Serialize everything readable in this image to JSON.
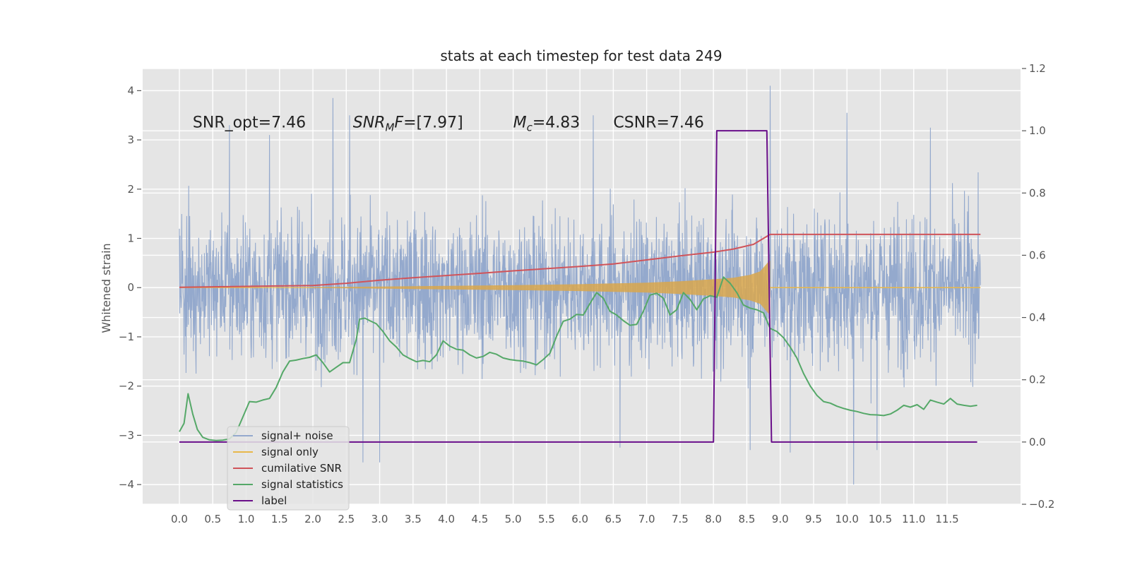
{
  "chart_data": {
    "type": "line",
    "title": "stats at each timestep for test data 249",
    "xlabel": "",
    "ylabel": "Whitened strain",
    "ylabel_right": "",
    "xlim": [
      -0.55,
      12.6
    ],
    "ylim": [
      -4.4,
      4.45
    ],
    "ylim_right": [
      -0.2,
      1.2
    ],
    "x_ticks": [
      "0.0",
      "0.5",
      "1.0",
      "1.5",
      "2.0",
      "2.5",
      "3.0",
      "3.5",
      "4.0",
      "4.5",
      "5.0",
      "5.5",
      "6.0",
      "6.5",
      "7.0",
      "7.5",
      "8.0",
      "8.5",
      "9.0",
      "9.5",
      "10.0",
      "10.5",
      "11.0",
      "11.5"
    ],
    "y_ticks_left": [
      "4",
      "3",
      "2",
      "1",
      "0",
      "−1",
      "−2",
      "−3",
      "−4"
    ],
    "y_ticks_right": [
      "1.2",
      "1.0",
      "0.8",
      "0.6",
      "0.4",
      "0.2",
      "0.0",
      "−0.2"
    ],
    "grid": true,
    "legend_placement": "lower-left",
    "annotations": [
      {
        "x": 0.2,
        "y": 3.25,
        "parts": [
          {
            "text": "SNR_opt=7.46",
            "italic": false,
            "sub": false
          }
        ]
      },
      {
        "x": 2.6,
        "y": 3.25,
        "parts": [
          {
            "text": "SNR",
            "italic": true,
            "sub": false
          },
          {
            "text": "M",
            "italic": true,
            "sub": true
          },
          {
            "text": "F",
            "italic": true,
            "sub": false
          },
          {
            "text": "=[7.97]",
            "italic": false,
            "sub": false
          }
        ]
      },
      {
        "x": 5.0,
        "y": 3.25,
        "parts": [
          {
            "text": "M",
            "italic": true,
            "sub": false
          },
          {
            "text": "c",
            "italic": true,
            "sub": true
          },
          {
            "text": "=4.83",
            "italic": false,
            "sub": false
          }
        ]
      },
      {
        "x": 6.5,
        "y": 3.25,
        "parts": [
          {
            "text": "CSNR=7.46",
            "italic": false,
            "sub": false
          }
        ]
      }
    ],
    "noise": {
      "x_start": 0.0,
      "x_end": 12.0,
      "envelope_x": [
        0,
        1,
        2,
        3,
        4,
        5,
        6,
        7,
        8,
        9,
        10,
        11,
        12
      ],
      "envelope_upper": [
        2.1,
        2.8,
        3.0,
        3.4,
        3.0,
        2.9,
        3.0,
        2.9,
        3.5,
        3.0,
        3.0,
        2.9,
        2.5
      ],
      "envelope_lower": [
        -2.5,
        -2.8,
        -3.2,
        -3.4,
        -3.0,
        -3.0,
        -3.0,
        -3.0,
        -3.2,
        -3.4,
        -3.6,
        -3.2,
        -3.0
      ],
      "spikes": [
        {
          "x": 0.75,
          "y": 3.3
        },
        {
          "x": 1.35,
          "y": 3.1
        },
        {
          "x": 2.3,
          "y": 3.85
        },
        {
          "x": 2.55,
          "y": 3.5
        },
        {
          "x": 6.2,
          "y": 3.5
        },
        {
          "x": 8.85,
          "y": 4.1
        },
        {
          "x": 10.0,
          "y": 3.55
        },
        {
          "x": 11.25,
          "y": 3.25
        },
        {
          "x": 2.75,
          "y": -3.55
        },
        {
          "x": 3.0,
          "y": -3.55
        },
        {
          "x": 6.6,
          "y": -3.25
        },
        {
          "x": 8.55,
          "y": -3.3
        },
        {
          "x": 9.15,
          "y": -3.35
        },
        {
          "x": 10.1,
          "y": -4.0
        },
        {
          "x": 10.45,
          "y": -3.3
        }
      ]
    },
    "signal_envelope": {
      "x": [
        2.0,
        3.0,
        4.0,
        5.0,
        6.0,
        6.5,
        7.0,
        7.5,
        8.0,
        8.3,
        8.55,
        8.7,
        8.82,
        8.85
      ],
      "amplitude": [
        0.01,
        0.02,
        0.035,
        0.05,
        0.07,
        0.085,
        0.1,
        0.13,
        0.17,
        0.2,
        0.26,
        0.33,
        0.52,
        0.55
      ],
      "x_end": 8.85
    },
    "series": [
      {
        "name": "signal+ noise",
        "axis": "left",
        "color": "#94a9cd"
      },
      {
        "name": "signal only",
        "axis": "left",
        "color": "#e8b84a"
      },
      {
        "name": "cumilative SNR",
        "axis": "right",
        "color": "#d0545a",
        "x": [
          0.0,
          1.0,
          2.0,
          2.5,
          3.0,
          3.5,
          4.0,
          4.5,
          5.0,
          5.5,
          6.0,
          6.5,
          7.0,
          7.5,
          8.0,
          8.3,
          8.6,
          8.85,
          12.0
        ],
        "y": [
          0.497,
          0.5,
          0.503,
          0.51,
          0.52,
          0.528,
          0.535,
          0.542,
          0.55,
          0.557,
          0.564,
          0.572,
          0.585,
          0.598,
          0.61,
          0.62,
          0.635,
          0.667,
          0.667
        ]
      },
      {
        "name": "signal statistics",
        "axis": "right",
        "color": "#55a868",
        "x": [
          0.0,
          0.07,
          0.13,
          0.2,
          0.27,
          0.35,
          0.45,
          0.55,
          0.65,
          0.75,
          0.85,
          0.95,
          1.05,
          1.15,
          1.25,
          1.35,
          1.45,
          1.55,
          1.65,
          1.75,
          1.85,
          1.95,
          2.05,
          2.15,
          2.25,
          2.35,
          2.45,
          2.55,
          2.65,
          2.7,
          2.78,
          2.85,
          2.95,
          3.05,
          3.15,
          3.25,
          3.35,
          3.45,
          3.55,
          3.65,
          3.75,
          3.85,
          3.95,
          4.05,
          4.15,
          4.25,
          4.35,
          4.45,
          4.55,
          4.65,
          4.75,
          4.85,
          4.95,
          5.05,
          5.15,
          5.25,
          5.35,
          5.45,
          5.55,
          5.65,
          5.75,
          5.85,
          5.95,
          6.05,
          6.15,
          6.25,
          6.35,
          6.45,
          6.55,
          6.65,
          6.75,
          6.85,
          6.95,
          7.05,
          7.15,
          7.25,
          7.35,
          7.45,
          7.55,
          7.65,
          7.75,
          7.85,
          7.95,
          8.05,
          8.15,
          8.25,
          8.35,
          8.45,
          8.55,
          8.65,
          8.75,
          8.85,
          8.95,
          9.05,
          9.15,
          9.25,
          9.35,
          9.45,
          9.55,
          9.65,
          9.75,
          9.85,
          9.95,
          10.05,
          10.15,
          10.25,
          10.35,
          10.45,
          10.55,
          10.65,
          10.75,
          10.85,
          10.95,
          11.05,
          11.15,
          11.25,
          11.35,
          11.45,
          11.55,
          11.65,
          11.75,
          11.85,
          11.95
        ],
        "y": [
          0.033,
          0.06,
          0.155,
          0.09,
          0.04,
          0.015,
          0.007,
          0.005,
          0.006,
          0.01,
          0.03,
          0.08,
          0.13,
          0.128,
          0.135,
          0.14,
          0.175,
          0.225,
          0.26,
          0.263,
          0.268,
          0.272,
          0.28,
          0.255,
          0.225,
          0.24,
          0.255,
          0.255,
          0.33,
          0.395,
          0.398,
          0.39,
          0.38,
          0.355,
          0.325,
          0.305,
          0.28,
          0.268,
          0.258,
          0.262,
          0.258,
          0.28,
          0.325,
          0.308,
          0.298,
          0.295,
          0.28,
          0.27,
          0.275,
          0.288,
          0.282,
          0.27,
          0.265,
          0.262,
          0.26,
          0.255,
          0.248,
          0.265,
          0.285,
          0.34,
          0.388,
          0.395,
          0.41,
          0.408,
          0.445,
          0.48,
          0.462,
          0.42,
          0.408,
          0.39,
          0.375,
          0.378,
          0.42,
          0.472,
          0.478,
          0.462,
          0.408,
          0.425,
          0.48,
          0.458,
          0.425,
          0.46,
          0.47,
          0.465,
          0.53,
          0.51,
          0.48,
          0.44,
          0.43,
          0.425,
          0.415,
          0.365,
          0.355,
          0.335,
          0.305,
          0.27,
          0.22,
          0.18,
          0.15,
          0.13,
          0.125,
          0.115,
          0.108,
          0.102,
          0.098,
          0.092,
          0.088,
          0.087,
          0.085,
          0.09,
          0.102,
          0.118,
          0.112,
          0.12,
          0.105,
          0.135,
          0.128,
          0.122,
          0.14,
          0.122,
          0.118,
          0.115,
          0.118
        ]
      },
      {
        "name": "label",
        "axis": "right",
        "color": "#6a0f8a",
        "x": [
          0.0,
          8.0,
          8.05,
          8.8,
          8.87,
          11.95
        ],
        "y": [
          0.0,
          0.0,
          1.0,
          1.0,
          0.0,
          0.0
        ]
      }
    ]
  }
}
